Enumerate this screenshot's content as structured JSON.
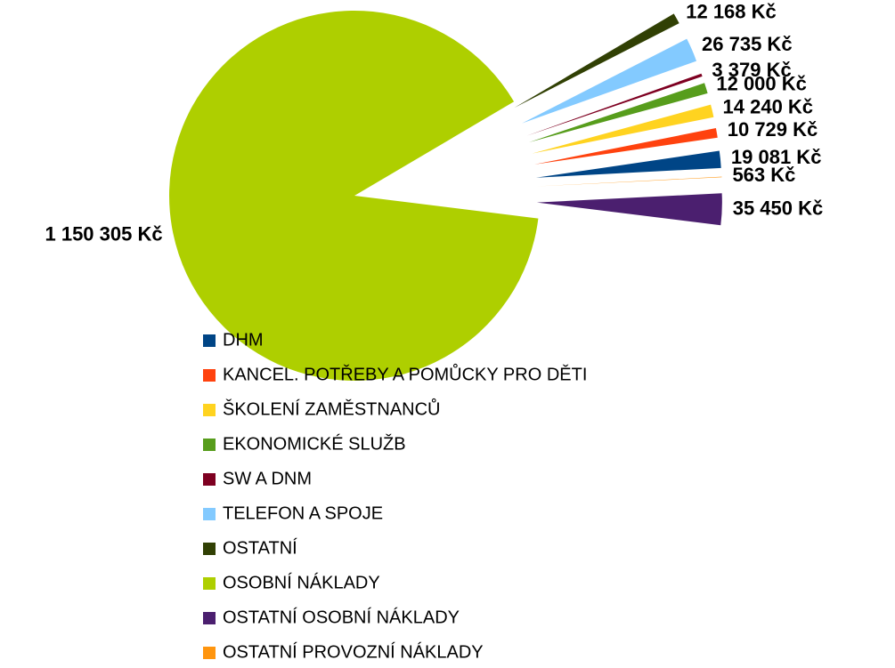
{
  "chart_data": {
    "type": "pie",
    "categories": [
      "DHM",
      "KANCEL. POTŘEBY A POMŮCKY PRO DĚTI",
      "ŠKOLENÍ ZAMĚSTNANCŮ",
      "EKONOMICKÉ SLUŽB",
      "SW A DNM",
      "TELEFON A SPOJE",
      "OSTATNÍ",
      "OSOBNÍ NÁKLADY",
      "OSTATNÍ OSOBNÍ NÁKLADY",
      "OSTATNÍ PROVOZNÍ NÁKLADY"
    ],
    "values": [
      19081,
      10729,
      14240,
      12000,
      3379,
      26735,
      12168,
      1150305,
      35450,
      563
    ],
    "value_labels": [
      "19 081 Kč",
      "10 729 Kč",
      "14 240 Kč",
      "12 000 Kč",
      "3 379 Kč",
      "26 735 Kč",
      "12 168 Kč",
      "1 150 305 Kč",
      "35 450 Kč",
      "563 Kč"
    ],
    "colors": [
      "#004586",
      "#ff420e",
      "#ffd320",
      "#579d1c",
      "#7e0021",
      "#83caff",
      "#314004",
      "#aecf00",
      "#4b1f6f",
      "#ff950e"
    ],
    "legend": "bottom"
  }
}
